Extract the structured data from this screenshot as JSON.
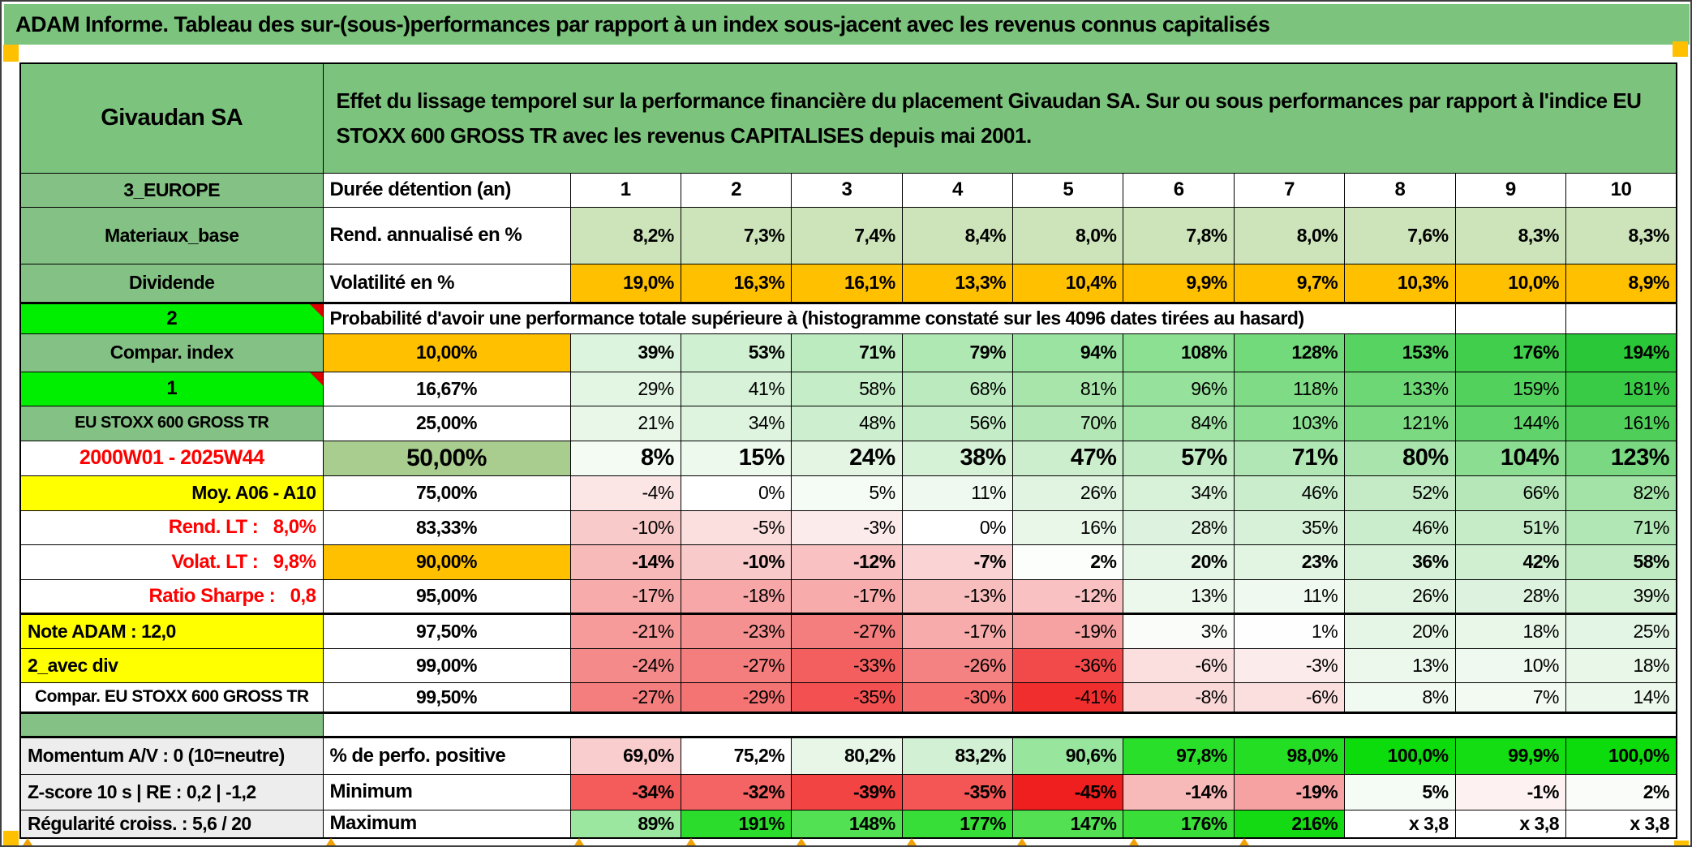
{
  "title": "ADAM Informe. Tableau des sur-(sous-)performances par rapport à un index sous-jacent avec les revenus connus capitalisés",
  "header": {
    "instrument": "Givaudan SA",
    "description": "Effet du lissage temporel sur la performance financière du placement Givaudan SA. Sur ou sous performances par rapport à l'indice EU STOXX 600 GROSS TR avec les revenus CAPITALISES depuis mai 2001."
  },
  "colors": {
    "title_green": "#7CC47D",
    "label_green": "#84C184",
    "lime": "#00EF00",
    "orange": "#FFC000",
    "yellow": "#FFFF00",
    "olive": "#A9CC8F",
    "rend_green": "#CDE4BB",
    "red_text": "#FF0000",
    "gray_label": "#EDEDED",
    "marker_orange": "#F2A104",
    "triangle_red": "#DF0000"
  },
  "top_rows": [
    {
      "label": "3_EUROPE",
      "metric": "Durée détention (an)",
      "value_style": "col-header",
      "values": [
        "1",
        "2",
        "3",
        "4",
        "5",
        "6",
        "7",
        "8",
        "9",
        "10"
      ]
    },
    {
      "label": "Materiaux_base",
      "metric": "Rend. annualisé en %",
      "value_style": "rend",
      "value_bg": "#CDE4BB",
      "values": [
        "8,2%",
        "7,3%",
        "7,4%",
        "8,4%",
        "8,0%",
        "7,8%",
        "8,0%",
        "7,6%",
        "8,3%",
        "8,3%"
      ]
    },
    {
      "label": "Dividende",
      "metric": "Volatilité en %",
      "value_style": "vol",
      "value_bg": "#FFC000",
      "values": [
        "19,0%",
        "16,3%",
        "16,1%",
        "13,3%",
        "10,4%",
        "9,9%",
        "9,7%",
        "10,3%",
        "10,0%",
        "8,9%"
      ]
    }
  ],
  "probability_section": {
    "corner_label": "2",
    "heading": "Probabilité d'avoir une performance totale supérieure à (histogramme constaté sur les 4096 dates tirées au hasard)",
    "rows": [
      {
        "label": "Compar. index",
        "label_style": "green",
        "threshold": "10,00%",
        "threshold_style": "orange",
        "emphasis": "bold",
        "values": [
          "39%",
          "53%",
          "71%",
          "79%",
          "94%",
          "108%",
          "128%",
          "153%",
          "176%",
          "194%"
        ],
        "bg": [
          "#DCF3DD",
          "#CFF0D1",
          "#BCEBBF",
          "#B0E8B4",
          "#9AE3A0",
          "#8CE091",
          "#73DA7B",
          "#57D362",
          "#40CE4C",
          "#2AC838"
        ]
      },
      {
        "label": "1",
        "label_style": "lime",
        "threshold": "16,67%",
        "threshold_style": "white",
        "emphasis": "normal",
        "values": [
          "29%",
          "41%",
          "58%",
          "68%",
          "81%",
          "96%",
          "118%",
          "133%",
          "159%",
          "181%"
        ],
        "bg": [
          "#E3F5E3",
          "#D7F2D8",
          "#C5EDC7",
          "#BAEABD",
          "#A7E5AB",
          "#96E19B",
          "#7FDB85",
          "#6DD775",
          "#52D15C",
          "#3ACB46"
        ]
      },
      {
        "label": "EU STOXX 600 GROSS TR",
        "label_style": "green-small",
        "threshold": "25,00%",
        "threshold_style": "white",
        "emphasis": "normal",
        "values": [
          "21%",
          "34%",
          "48%",
          "56%",
          "70%",
          "84%",
          "103%",
          "121%",
          "144%",
          "161%"
        ],
        "bg": [
          "#E9F7E9",
          "#DEF4DF",
          "#CDEFCF",
          "#C4ECC6",
          "#B3E8B6",
          "#A2E4A6",
          "#8CDE92",
          "#7AD981",
          "#60D36A",
          "#4FCE5A"
        ]
      },
      {
        "label": "2000W01 - 2025W44",
        "label_style": "daterange",
        "threshold": "50,00%",
        "threshold_style": "olive-big",
        "emphasis": "big",
        "values": [
          "8%",
          "15%",
          "24%",
          "38%",
          "47%",
          "57%",
          "71%",
          "80%",
          "104%",
          "123%"
        ],
        "bg": [
          "#F3FBF3",
          "#EDF9ED",
          "#E4F5E4",
          "#D5F1D6",
          "#CCEECD",
          "#C1EBC3",
          "#B1E7B4",
          "#A8E4AC",
          "#8BDD92",
          "#79D881"
        ]
      },
      {
        "label": "Moy. A06 - A10",
        "label_style": "yellow-right",
        "threshold": "75,00%",
        "threshold_style": "white",
        "emphasis": "normal",
        "values": [
          "-4%",
          "0%",
          "5%",
          "11%",
          "26%",
          "34%",
          "46%",
          "52%",
          "66%",
          "82%"
        ],
        "bg": [
          "#FCE5E5",
          "#FFFFFF",
          "#F5FBF5",
          "#EFF9EF",
          "#E0F4E1",
          "#D8F1D9",
          "#CAEDCC",
          "#C4EBC6",
          "#B5E7B8",
          "#A4E3A8"
        ]
      },
      {
        "label": "Rend. LT :   8,0%",
        "label_style": "red-right",
        "threshold": "83,33%",
        "threshold_style": "white",
        "emphasis": "normal",
        "values": [
          "-10%",
          "-5%",
          "-3%",
          "0%",
          "16%",
          "28%",
          "35%",
          "46%",
          "51%",
          "71%"
        ],
        "bg": [
          "#F9CACA",
          "#FBDFDF",
          "#FCEBEB",
          "#FFFFFF",
          "#E9F7E9",
          "#DEF3DF",
          "#D7F1D8",
          "#CAEDCC",
          "#C5EBC7",
          "#B1E7B4"
        ]
      },
      {
        "label": "Volat. LT :   9,8%",
        "label_style": "red-right",
        "threshold": "90,00%",
        "threshold_style": "orange",
        "emphasis": "bold",
        "values": [
          "-14%",
          "-10%",
          "-12%",
          "-7%",
          "2%",
          "20%",
          "23%",
          "36%",
          "42%",
          "58%"
        ],
        "bg": [
          "#F8B9B9",
          "#F9CACA",
          "#F9C1C1",
          "#FAD4D4",
          "#FCFEFC",
          "#E6F6E6",
          "#E2F5E3",
          "#D6F1D7",
          "#CFEFD0",
          "#C0EBC2"
        ]
      },
      {
        "label": "Ratio Sharpe :   0,8",
        "label_style": "red-right",
        "threshold": "95,00%",
        "threshold_style": "white",
        "emphasis": "normal",
        "values": [
          "-17%",
          "-18%",
          "-17%",
          "-13%",
          "-12%",
          "13%",
          "11%",
          "26%",
          "28%",
          "39%"
        ],
        "bg": [
          "#F7ABAB",
          "#F7A7A7",
          "#F7ABAB",
          "#F8BDBD",
          "#F9C1C1",
          "#EDF8ED",
          "#EFF9EF",
          "#E0F4E1",
          "#DEF3DF",
          "#D4F0D5"
        ]
      },
      {
        "label": "Note ADAM : 12,0",
        "label_style": "yellow-left",
        "threshold": "97,50%",
        "threshold_style": "white",
        "emphasis": "normal",
        "thick_top": true,
        "values": [
          "-21%",
          "-23%",
          "-27%",
          "-17%",
          "-19%",
          "3%",
          "1%",
          "20%",
          "18%",
          "25%"
        ],
        "bg": [
          "#F69A9A",
          "#F59090",
          "#F47E7E",
          "#F7ABAB",
          "#F6A2A2",
          "#F9FCF9",
          "#FDFEFD",
          "#E6F6E6",
          "#E8F7E8",
          "#E3F5E4"
        ]
      },
      {
        "label": "2_avec div",
        "label_style": "yellow-left",
        "threshold": "99,00%",
        "threshold_style": "white",
        "emphasis": "normal",
        "values": [
          "-24%",
          "-27%",
          "-33%",
          "-26%",
          "-36%",
          "-6%",
          "-3%",
          "13%",
          "10%",
          "18%"
        ],
        "bg": [
          "#F58A8A",
          "#F47E7E",
          "#F35F5F",
          "#F48282",
          "#F24A4A",
          "#FBDFDF",
          "#FCEBEB",
          "#EDF8ED",
          "#F0F9F0",
          "#E8F7E8"
        ]
      },
      {
        "label": "Compar. EU STOXX 600 GROSS TR",
        "label_style": "white-center",
        "threshold": "99,50%",
        "threshold_style": "white",
        "emphasis": "normal",
        "values": [
          "-27%",
          "-29%",
          "-35%",
          "-30%",
          "-41%",
          "-8%",
          "-6%",
          "8%",
          "7%",
          "14%"
        ],
        "bg": [
          "#F47E7E",
          "#F47474",
          "#F35151",
          "#F46E6E",
          "#F12E2E",
          "#FAD8D8",
          "#FBDFDF",
          "#F1FAF1",
          "#F2FAF2",
          "#ECF8EC"
        ]
      }
    ]
  },
  "summary_section": {
    "rows": [
      {
        "label": "Momentum A/V : 0 (10=neutre)",
        "metric": "% de perfo. positive",
        "values": [
          "69,0%",
          "75,2%",
          "80,2%",
          "83,2%",
          "90,6%",
          "97,8%",
          "98,0%",
          "100,0%",
          "99,9%",
          "100,0%"
        ],
        "bg": [
          "#F9CDCD",
          "#FFFFFF",
          "#E7F6E7",
          "#D2F0D3",
          "#98E59E",
          "#2ADF2A",
          "#24DE24",
          "#0CDC0C",
          "#14DD14",
          "#0CDC0C"
        ]
      },
      {
        "label": "Z-score 10 s | RE : 0,2 | -1,2",
        "metric": "Minimum",
        "values": [
          "-34%",
          "-32%",
          "-39%",
          "-35%",
          "-45%",
          "-14%",
          "-19%",
          "5%",
          "-1%",
          "2%"
        ],
        "bg": [
          "#F45C5C",
          "#F46464",
          "#F34444",
          "#F45656",
          "#F01F1F",
          "#F8B9B9",
          "#F6A2A2",
          "#F5FBF5",
          "#FDF1F1",
          "#F9FCF9"
        ]
      },
      {
        "label": "Régularité croiss. : 5,6 / 20",
        "metric": "Maximum",
        "values": [
          "89%",
          "191%",
          "148%",
          "177%",
          "147%",
          "176%",
          "216%",
          "x 3,8",
          "x 3,8",
          "x 3,8"
        ],
        "bg": [
          "#9CE79F",
          "#2CDC2C",
          "#52E152",
          "#38DE38",
          "#53E153",
          "#39DE39",
          "#14DA14",
          "#FFFFFF",
          "#FFFFFF",
          "#FFFFFF"
        ]
      }
    ]
  }
}
